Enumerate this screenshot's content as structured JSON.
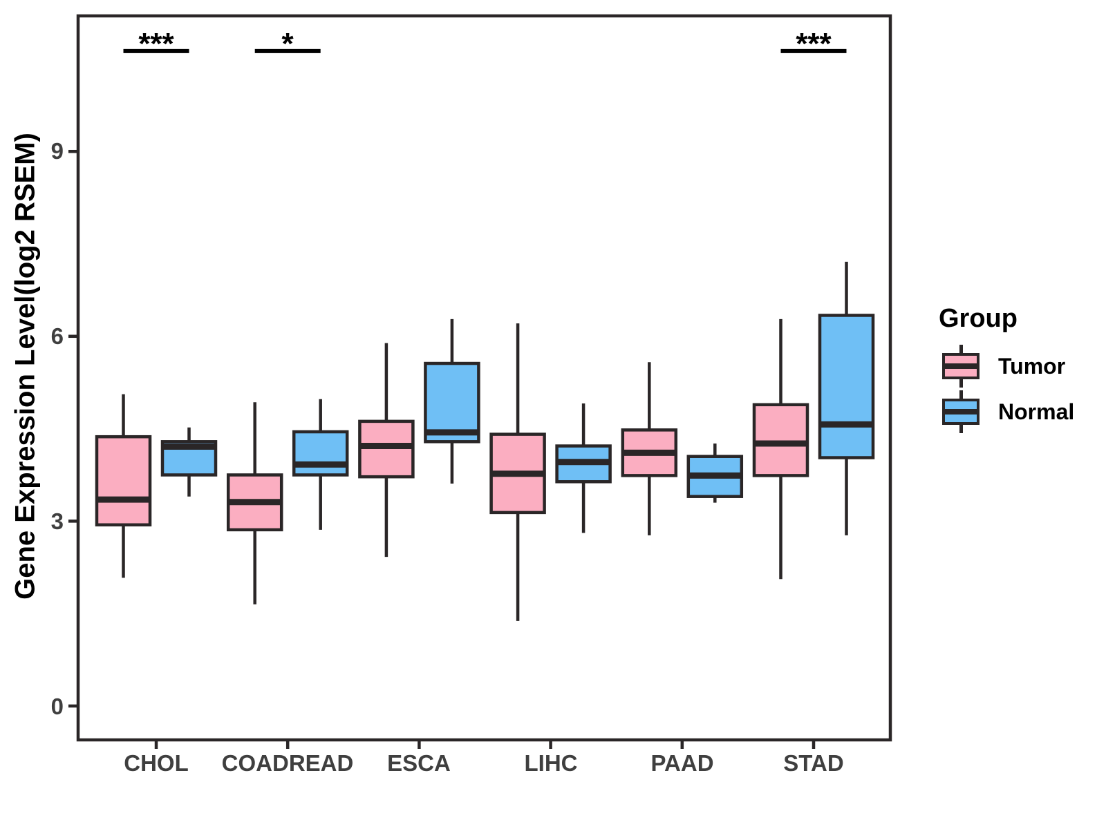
{
  "chart_data": {
    "type": "boxplot",
    "title": "",
    "xlabel": "",
    "ylabel": "Gene Expression Level(log2 RSEM)",
    "categories": [
      "CHOL",
      "COADREAD",
      "ESCA",
      "LIHC",
      "PAAD",
      "STAD"
    ],
    "yticks": [
      0,
      3,
      6,
      9
    ],
    "ylim": [
      -0.55,
      11.2
    ],
    "grid": "off",
    "legend": {
      "title": "Group",
      "position": "right"
    },
    "colors": {
      "tumor": "#FBAEC1",
      "normal": "#6FBFF5",
      "line": "#2A2627",
      "axis_text": "#3F3F3F",
      "annotation": "#000000"
    },
    "series": [
      {
        "name": "Tumor",
        "color_key": "tumor",
        "boxes": [
          {
            "category": "CHOL",
            "low": 2.08,
            "q1": 2.94,
            "median": 3.35,
            "q3": 4.37,
            "high": 5.06
          },
          {
            "category": "COADREAD",
            "low": 1.65,
            "q1": 2.86,
            "median": 3.31,
            "q3": 3.75,
            "high": 4.93
          },
          {
            "category": "ESCA",
            "low": 2.42,
            "q1": 3.72,
            "median": 4.22,
            "q3": 4.62,
            "high": 5.89
          },
          {
            "category": "LIHC",
            "low": 1.38,
            "q1": 3.14,
            "median": 3.77,
            "q3": 4.41,
            "high": 6.21
          },
          {
            "category": "PAAD",
            "low": 2.77,
            "q1": 3.74,
            "median": 4.11,
            "q3": 4.48,
            "high": 5.58
          },
          {
            "category": "STAD",
            "low": 2.06,
            "q1": 3.74,
            "median": 4.26,
            "q3": 4.89,
            "high": 6.28
          }
        ]
      },
      {
        "name": "Normal",
        "color_key": "normal",
        "boxes": [
          {
            "category": "CHOL",
            "low": 3.4,
            "q1": 3.75,
            "median": 4.21,
            "q3": 4.29,
            "high": 4.52
          },
          {
            "category": "COADREAD",
            "low": 2.86,
            "q1": 3.75,
            "median": 3.92,
            "q3": 4.45,
            "high": 4.98
          },
          {
            "category": "ESCA",
            "low": 3.61,
            "q1": 4.29,
            "median": 4.44,
            "q3": 5.56,
            "high": 6.28
          },
          {
            "category": "LIHC",
            "low": 2.81,
            "q1": 3.64,
            "median": 3.96,
            "q3": 4.22,
            "high": 4.91
          },
          {
            "category": "PAAD",
            "low": 3.3,
            "q1": 3.4,
            "median": 3.74,
            "q3": 4.05,
            "high": 4.26
          },
          {
            "category": "STAD",
            "low": 2.77,
            "q1": 4.03,
            "median": 4.57,
            "q3": 6.34,
            "high": 7.21
          }
        ]
      }
    ],
    "significance": [
      {
        "category": "CHOL",
        "label": "***",
        "y": 10.63
      },
      {
        "category": "COADREAD",
        "label": "*",
        "y": 10.63
      },
      {
        "category": "STAD",
        "label": "***",
        "y": 10.63
      }
    ]
  }
}
